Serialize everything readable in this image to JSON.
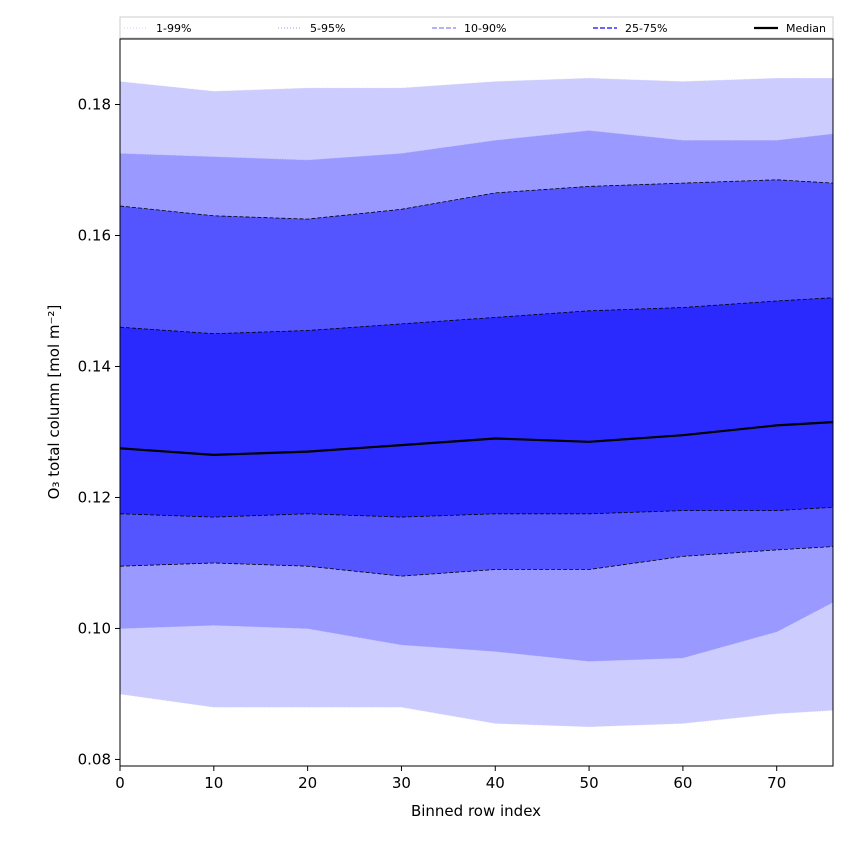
{
  "chart_data": {
    "type": "area",
    "title": "",
    "xlabel": "Binned row index",
    "ylabel": "O₃ total column [mol m⁻²]",
    "xlim": [
      0,
      76
    ],
    "ylim": [
      0.079,
      0.19
    ],
    "x_ticks": [
      0,
      10,
      20,
      30,
      40,
      50,
      60,
      70
    ],
    "y_ticks": [
      0.08,
      0.1,
      0.12,
      0.14,
      0.16,
      0.18
    ],
    "x_tick_labels": [
      "0",
      "10",
      "20",
      "30",
      "40",
      "50",
      "60",
      "70"
    ],
    "y_tick_labels": [
      "0.08",
      "0.10",
      "0.12",
      "0.14",
      "0.16",
      "0.18"
    ],
    "grid": false,
    "legend_position": "top",
    "legend": [
      {
        "label": "1-99%",
        "color": "#ccccff",
        "style": "dotted"
      },
      {
        "label": "5-95%",
        "color": "#9999ff",
        "style": "dotted"
      },
      {
        "label": "10-90%",
        "color": "#6666ff",
        "style": "dashed"
      },
      {
        "label": "25-75%",
        "color": "#3333ff",
        "style": "dashed"
      },
      {
        "label": "Median",
        "color": "#000000",
        "style": "solid"
      }
    ],
    "x": [
      0,
      10,
      20,
      30,
      40,
      50,
      60,
      70,
      76
    ],
    "bands": [
      {
        "name": "1-99%",
        "fill": "#ccccff",
        "lower": [
          0.09,
          0.088,
          0.088,
          0.088,
          0.0855,
          0.085,
          0.0855,
          0.087,
          0.0875
        ],
        "upper": [
          0.1835,
          0.182,
          0.1825,
          0.1825,
          0.1835,
          0.184,
          0.1835,
          0.184,
          0.184
        ]
      },
      {
        "name": "5-95%",
        "fill": "#9999ff",
        "lower": [
          0.1,
          0.1005,
          0.1,
          0.0975,
          0.0965,
          0.095,
          0.0955,
          0.0995,
          0.104
        ],
        "upper": [
          0.1725,
          0.172,
          0.1715,
          0.1725,
          0.1745,
          0.176,
          0.1745,
          0.1745,
          0.1755
        ]
      },
      {
        "name": "10-90%",
        "fill": "#5555ff",
        "lower": [
          0.1095,
          0.11,
          0.1095,
          0.108,
          0.109,
          0.109,
          0.111,
          0.112,
          0.1125
        ],
        "upper": [
          0.1645,
          0.163,
          0.1625,
          0.164,
          0.1665,
          0.1675,
          0.168,
          0.1685,
          0.168
        ]
      },
      {
        "name": "25-75%",
        "fill": "#2a2aff",
        "lower": [
          0.1175,
          0.117,
          0.1175,
          0.117,
          0.1175,
          0.1175,
          0.118,
          0.118,
          0.1185
        ],
        "upper": [
          0.146,
          0.145,
          0.1455,
          0.1465,
          0.1475,
          0.1485,
          0.149,
          0.15,
          0.1505
        ]
      }
    ],
    "median": [
      0.1275,
      0.1265,
      0.127,
      0.128,
      0.129,
      0.1285,
      0.1295,
      0.131,
      0.1315
    ]
  }
}
